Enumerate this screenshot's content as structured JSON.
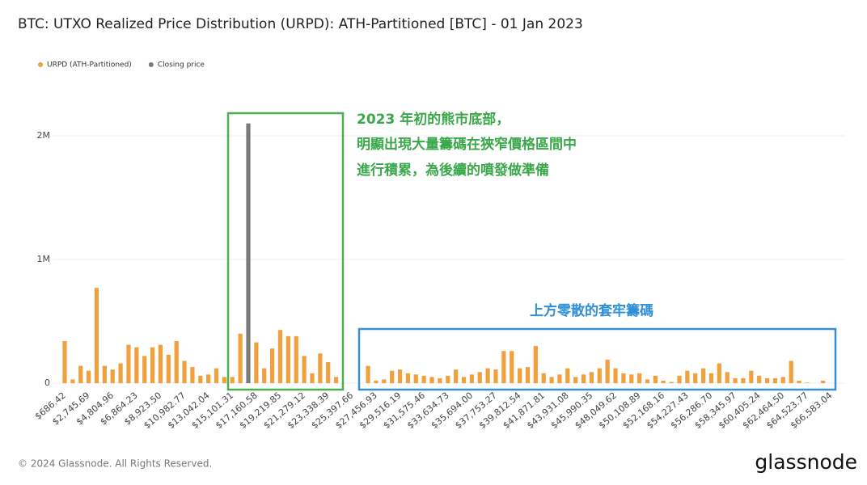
{
  "chart_data": {
    "type": "bar",
    "title": "BTC: UTXO Realized Price Distribution (URPD): ATH-Partitioned [BTC] - 01 Jan 2023",
    "categories": [
      "$686.42",
      null,
      null,
      "$2,745.69",
      null,
      null,
      "$4,804.96",
      null,
      null,
      "$6,864.23",
      null,
      null,
      "$8,923.50",
      null,
      null,
      "$10,982.77",
      null,
      null,
      "$13,042.04",
      null,
      null,
      "$15,101.31",
      null,
      null,
      "$17,160.58",
      null,
      null,
      "$19,219.85",
      null,
      null,
      "$21,279.12",
      null,
      null,
      "$23,338.39",
      null,
      null,
      "$25,397.66",
      null,
      null,
      "$27,456.93",
      null,
      null,
      "$29,516.19",
      null,
      null,
      "$31,575.46",
      null,
      null,
      "$33,634.73",
      null,
      null,
      "$35,694.00",
      null,
      null,
      "$37,753.27",
      null,
      null,
      "$39,812.54",
      null,
      null,
      "$41,871.81",
      null,
      null,
      "$43,931.08",
      null,
      null,
      "$45,990.35",
      null,
      null,
      "$48,049.62",
      null,
      null,
      "$50,108.89",
      null,
      null,
      "$52,168.16",
      null,
      null,
      "$54,227.43",
      null,
      null,
      "$56,286.70",
      null,
      null,
      "$58,345.97",
      null,
      null,
      "$60,405.24",
      null,
      null,
      "$62,464.50",
      null,
      null,
      "$64,523.77",
      null,
      null,
      "$66,583.04"
    ],
    "series": [
      {
        "name": "URPD (ATH-Partitioned)",
        "color": "#f0a03c",
        "values": [
          340000,
          30000,
          140000,
          100000,
          770000,
          140000,
          110000,
          160000,
          310000,
          290000,
          220000,
          290000,
          310000,
          230000,
          340000,
          180000,
          130000,
          60000,
          70000,
          120000,
          50000,
          50000,
          400000,
          null,
          330000,
          120000,
          280000,
          430000,
          380000,
          380000,
          220000,
          80000,
          240000,
          170000,
          50000,
          0,
          0,
          0,
          140000,
          20000,
          30000,
          100000,
          110000,
          80000,
          70000,
          60000,
          50000,
          40000,
          60000,
          110000,
          50000,
          70000,
          90000,
          120000,
          110000,
          260000,
          260000,
          120000,
          130000,
          300000,
          80000,
          50000,
          70000,
          120000,
          50000,
          70000,
          90000,
          120000,
          190000,
          120000,
          80000,
          70000,
          80000,
          30000,
          60000,
          20000,
          10000,
          60000,
          100000,
          80000,
          120000,
          80000,
          160000,
          90000,
          40000,
          40000,
          100000,
          60000,
          40000,
          40000,
          50000,
          180000,
          20000,
          5000,
          0,
          20000,
          0
        ]
      },
      {
        "name": "Closing price",
        "color": "#7a7a7a",
        "values": [
          null,
          null,
          null,
          null,
          null,
          null,
          null,
          null,
          null,
          null,
          null,
          null,
          null,
          null,
          null,
          null,
          null,
          null,
          null,
          null,
          null,
          null,
          null,
          2100000,
          null,
          null,
          null,
          null,
          null,
          null,
          null,
          null,
          null,
          null,
          null,
          null,
          null,
          null,
          null,
          null,
          null,
          null,
          null,
          null,
          null,
          null,
          null,
          null,
          null,
          null,
          null,
          null,
          null,
          null,
          null,
          null,
          null,
          null,
          null,
          null,
          null,
          null,
          null,
          null,
          null,
          null,
          null,
          null,
          null,
          null,
          null,
          null,
          null,
          null,
          null,
          null,
          null,
          null,
          null,
          null,
          null,
          null,
          null,
          null,
          null,
          null,
          null,
          null,
          null,
          null,
          null,
          null,
          null,
          null,
          null,
          null,
          null
        ]
      }
    ],
    "ylim": [
      0,
      2500000
    ],
    "yticks": [
      0,
      {
        "value": 1000000,
        "label": "1M"
      },
      {
        "value": 2000000,
        "label": "2M"
      }
    ],
    "grid": true,
    "annotations": [
      "2023 年初的熊市底部，",
      "明顯出現大量籌碼在狹窄價格區間中",
      "進行積累，為後續的噴發做準備",
      "上方零散的套牢籌碼"
    ]
  },
  "copyright": "© 2024 Glassnode. All Rights Reserved.",
  "brand": "glassnode"
}
